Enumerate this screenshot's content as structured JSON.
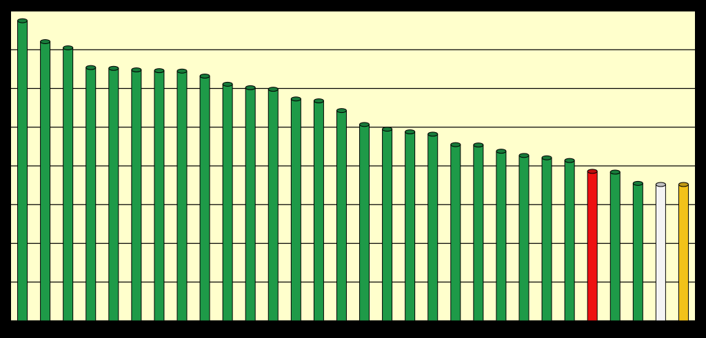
{
  "chart_data": {
    "type": "bar",
    "categories": [
      null,
      null,
      null,
      null,
      null,
      null,
      null,
      null,
      null,
      null,
      null,
      null,
      null,
      null,
      null,
      null,
      null,
      null,
      null,
      null,
      null,
      null,
      null,
      null,
      null,
      null,
      null,
      null,
      null,
      null
    ],
    "values": [
      7.75,
      7.21,
      7.05,
      6.54,
      6.52,
      6.48,
      6.46,
      6.45,
      6.32,
      6.11,
      6.02,
      5.98,
      5.73,
      5.68,
      5.43,
      5.07,
      4.95,
      4.88,
      4.82,
      4.55,
      4.54,
      4.38,
      4.27,
      4.21,
      4.14,
      3.86,
      3.84,
      3.55,
      3.52,
      3.52
    ],
    "colors": [
      "#1e9a48",
      "#1e9a48",
      "#1e9a48",
      "#1e9a48",
      "#1e9a48",
      "#1e9a48",
      "#1e9a48",
      "#1e9a48",
      "#1e9a48",
      "#1e9a48",
      "#1e9a48",
      "#1e9a48",
      "#1e9a48",
      "#1e9a48",
      "#1e9a48",
      "#1e9a48",
      "#1e9a48",
      "#1e9a48",
      "#1e9a48",
      "#1e9a48",
      "#1e9a48",
      "#1e9a48",
      "#1e9a48",
      "#1e9a48",
      "#1e9a48",
      "#ee1111",
      "#1e9a48",
      "#1e9a48",
      "#f4f4f4",
      "#f2c21a"
    ],
    "ylim": [
      0,
      8
    ],
    "yticks": [
      0,
      1,
      2,
      3,
      4,
      5,
      6,
      7,
      8
    ],
    "grid": true
  }
}
